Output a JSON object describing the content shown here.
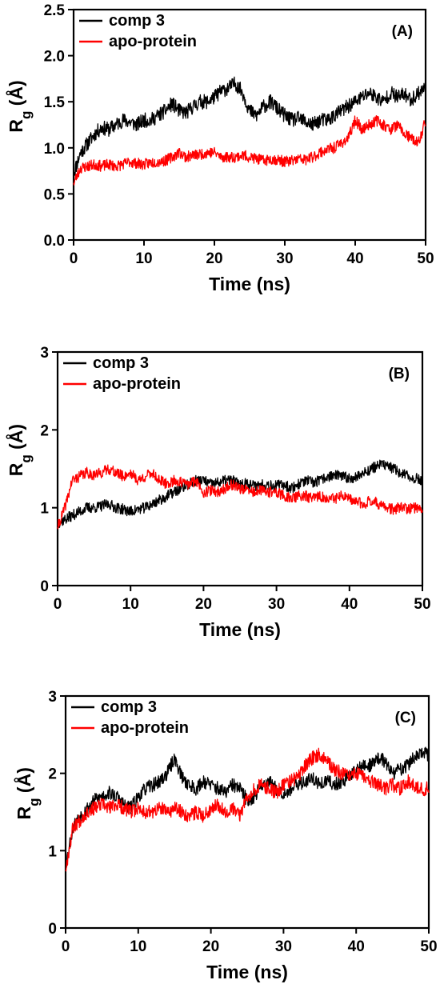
{
  "colors": {
    "comp3": "#000000",
    "apo": "#ff0000"
  },
  "chart_data": [
    {
      "type": "line",
      "panel_label": "(A)",
      "xlabel": "Time (ns)",
      "ylabel_main": "R",
      "ylabel_sub": "g",
      "ylabel_unit": "(Å)",
      "xlim": [
        0,
        50
      ],
      "ylim": [
        0,
        2.5
      ],
      "xticks": [
        0,
        10,
        20,
        30,
        40,
        50
      ],
      "xtick_labels": [
        "0",
        "10",
        "20",
        "30",
        "40",
        "50"
      ],
      "yticks": [
        0,
        0.5,
        1.0,
        1.5,
        2.0,
        2.5
      ],
      "ytick_labels": [
        "0.0",
        "0.5",
        "1.0",
        "1.5",
        "2.0",
        "2.5"
      ],
      "legend_position": "top-left",
      "series": [
        {
          "name": "comp 3",
          "color": "#000000",
          "x": [
            0,
            1,
            2,
            3,
            4,
            5,
            6,
            7,
            8,
            9,
            10,
            11,
            12,
            13,
            14,
            15,
            16,
            17,
            18,
            19,
            20,
            21,
            22,
            23,
            24,
            25,
            26,
            27,
            28,
            29,
            30,
            31,
            32,
            33,
            34,
            35,
            36,
            37,
            38,
            39,
            40,
            41,
            42,
            43,
            44,
            45,
            46,
            47,
            48,
            49,
            50
          ],
          "y": [
            0.72,
            0.95,
            1.05,
            1.15,
            1.22,
            1.2,
            1.25,
            1.3,
            1.28,
            1.25,
            1.3,
            1.3,
            1.35,
            1.4,
            1.48,
            1.4,
            1.38,
            1.45,
            1.5,
            1.5,
            1.55,
            1.62,
            1.65,
            1.7,
            1.6,
            1.4,
            1.35,
            1.45,
            1.5,
            1.42,
            1.35,
            1.3,
            1.32,
            1.28,
            1.25,
            1.3,
            1.3,
            1.35,
            1.4,
            1.45,
            1.5,
            1.55,
            1.6,
            1.55,
            1.5,
            1.6,
            1.55,
            1.58,
            1.52,
            1.6,
            1.65
          ],
          "noise": 0.08,
          "seed": 11
        },
        {
          "name": "apo-protein",
          "color": "#ff0000",
          "x": [
            0,
            1,
            2,
            3,
            4,
            5,
            6,
            7,
            8,
            9,
            10,
            11,
            12,
            13,
            14,
            15,
            16,
            17,
            18,
            19,
            20,
            21,
            22,
            23,
            24,
            25,
            26,
            27,
            28,
            29,
            30,
            31,
            32,
            33,
            34,
            35,
            36,
            37,
            38,
            39,
            40,
            41,
            42,
            43,
            44,
            45,
            46,
            47,
            48,
            49,
            50
          ],
          "y": [
            0.62,
            0.78,
            0.8,
            0.82,
            0.8,
            0.82,
            0.8,
            0.82,
            0.85,
            0.83,
            0.82,
            0.84,
            0.85,
            0.86,
            0.9,
            0.95,
            0.9,
            0.92,
            0.93,
            0.95,
            0.95,
            0.9,
            0.9,
            0.9,
            0.92,
            0.9,
            0.88,
            0.86,
            0.88,
            0.87,
            0.85,
            0.86,
            0.88,
            0.87,
            0.9,
            0.95,
            0.98,
            1.0,
            1.05,
            1.1,
            1.3,
            1.2,
            1.25,
            1.3,
            1.25,
            1.2,
            1.25,
            1.15,
            1.1,
            1.05,
            1.3
          ],
          "noise": 0.06,
          "seed": 23
        }
      ]
    },
    {
      "type": "line",
      "panel_label": "(B)",
      "xlabel": "Time (ns)",
      "ylabel_main": "R",
      "ylabel_sub": "g",
      "ylabel_unit": "(Å)",
      "xlim": [
        0,
        50
      ],
      "ylim": [
        0,
        3
      ],
      "xticks": [
        0,
        10,
        20,
        30,
        40,
        50
      ],
      "xtick_labels": [
        "0",
        "10",
        "20",
        "30",
        "40",
        "50"
      ],
      "yticks": [
        0,
        1,
        2,
        3
      ],
      "ytick_labels": [
        "0",
        "1",
        "2",
        "3"
      ],
      "legend_position": "top-left",
      "series": [
        {
          "name": "comp 3",
          "color": "#000000",
          "x": [
            0,
            1,
            2,
            3,
            4,
            5,
            6,
            7,
            8,
            9,
            10,
            11,
            12,
            13,
            14,
            15,
            16,
            17,
            18,
            19,
            20,
            21,
            22,
            23,
            24,
            25,
            26,
            27,
            28,
            29,
            30,
            31,
            32,
            33,
            34,
            35,
            36,
            37,
            38,
            39,
            40,
            41,
            42,
            43,
            44,
            45,
            46,
            47,
            48,
            49,
            50
          ],
          "y": [
            0.8,
            0.85,
            0.9,
            0.95,
            1.0,
            1.0,
            1.02,
            1.05,
            1.0,
            0.98,
            0.95,
            0.98,
            1.0,
            1.05,
            1.1,
            1.15,
            1.2,
            1.25,
            1.3,
            1.35,
            1.35,
            1.3,
            1.32,
            1.35,
            1.35,
            1.3,
            1.32,
            1.28,
            1.3,
            1.3,
            1.28,
            1.3,
            1.25,
            1.3,
            1.35,
            1.32,
            1.35,
            1.4,
            1.42,
            1.4,
            1.38,
            1.4,
            1.45,
            1.5,
            1.55,
            1.55,
            1.5,
            1.45,
            1.4,
            1.38,
            1.35
          ],
          "noise": 0.07,
          "seed": 37
        },
        {
          "name": "apo-protein",
          "color": "#ff0000",
          "x": [
            0,
            1,
            2,
            3,
            4,
            5,
            6,
            7,
            8,
            9,
            10,
            11,
            12,
            13,
            14,
            15,
            16,
            17,
            18,
            19,
            20,
            21,
            22,
            23,
            24,
            25,
            26,
            27,
            28,
            29,
            30,
            31,
            32,
            33,
            34,
            35,
            36,
            37,
            38,
            39,
            40,
            41,
            42,
            43,
            44,
            45,
            46,
            47,
            48,
            49,
            50
          ],
          "y": [
            0.75,
            1.0,
            1.35,
            1.4,
            1.45,
            1.42,
            1.45,
            1.5,
            1.45,
            1.4,
            1.45,
            1.35,
            1.4,
            1.45,
            1.35,
            1.3,
            1.35,
            1.32,
            1.3,
            1.35,
            1.2,
            1.22,
            1.2,
            1.25,
            1.3,
            1.25,
            1.22,
            1.2,
            1.22,
            1.2,
            1.2,
            1.15,
            1.12,
            1.15,
            1.15,
            1.12,
            1.15,
            1.1,
            1.12,
            1.15,
            1.1,
            1.08,
            1.05,
            1.1,
            1.05,
            1.0,
            0.98,
            1.0,
            0.98,
            1.0,
            1.0
          ],
          "noise": 0.07,
          "seed": 41
        }
      ]
    },
    {
      "type": "line",
      "panel_label": "(C)",
      "xlabel": "Time (ns)",
      "ylabel_main": "R",
      "ylabel_sub": "g",
      "ylabel_unit": "(Å)",
      "xlim": [
        0,
        50
      ],
      "ylim": [
        0,
        3
      ],
      "xticks": [
        0,
        10,
        20,
        30,
        40,
        50
      ],
      "xtick_labels": [
        "0",
        "10",
        "20",
        "30",
        "40",
        "50"
      ],
      "yticks": [
        0,
        1,
        2,
        3
      ],
      "ytick_labels": [
        "0",
        "1",
        "2",
        "3"
      ],
      "legend_position": "top-left",
      "series": [
        {
          "name": "comp 3",
          "color": "#000000",
          "x": [
            0,
            1,
            2,
            3,
            4,
            5,
            6,
            7,
            8,
            9,
            10,
            11,
            12,
            13,
            14,
            15,
            16,
            17,
            18,
            19,
            20,
            21,
            22,
            23,
            24,
            25,
            26,
            27,
            28,
            29,
            30,
            31,
            32,
            33,
            34,
            35,
            36,
            37,
            38,
            39,
            40,
            41,
            42,
            43,
            44,
            45,
            46,
            47,
            48,
            49,
            50
          ],
          "y": [
            0.8,
            1.3,
            1.45,
            1.55,
            1.65,
            1.7,
            1.75,
            1.7,
            1.6,
            1.55,
            1.7,
            1.8,
            1.85,
            1.9,
            2.0,
            2.2,
            1.95,
            1.85,
            1.8,
            1.9,
            1.85,
            1.8,
            1.75,
            1.85,
            1.8,
            1.65,
            1.7,
            1.85,
            1.9,
            1.8,
            1.75,
            1.8,
            1.85,
            1.9,
            1.95,
            1.85,
            1.9,
            1.85,
            1.9,
            1.95,
            2.05,
            2.1,
            2.1,
            2.2,
            2.15,
            2.0,
            2.05,
            2.1,
            2.2,
            2.25,
            2.25
          ],
          "noise": 0.09,
          "seed": 53
        },
        {
          "name": "apo-protein",
          "color": "#ff0000",
          "x": [
            0,
            1,
            2,
            3,
            4,
            5,
            6,
            7,
            8,
            9,
            10,
            11,
            12,
            13,
            14,
            15,
            16,
            17,
            18,
            19,
            20,
            21,
            22,
            23,
            24,
            25,
            26,
            27,
            28,
            29,
            30,
            31,
            32,
            33,
            34,
            35,
            36,
            37,
            38,
            39,
            40,
            41,
            42,
            43,
            44,
            45,
            46,
            47,
            48,
            49,
            50
          ],
          "y": [
            0.75,
            1.3,
            1.4,
            1.5,
            1.55,
            1.6,
            1.55,
            1.6,
            1.55,
            1.5,
            1.55,
            1.5,
            1.5,
            1.55,
            1.5,
            1.55,
            1.5,
            1.45,
            1.5,
            1.45,
            1.55,
            1.6,
            1.5,
            1.55,
            1.45,
            1.7,
            1.8,
            1.85,
            1.8,
            1.75,
            1.85,
            1.9,
            1.95,
            2.1,
            2.2,
            2.25,
            2.15,
            2.05,
            2.0,
            1.95,
            2.0,
            1.95,
            1.9,
            1.85,
            1.8,
            1.85,
            1.8,
            1.9,
            1.85,
            1.8,
            1.8
          ],
          "noise": 0.09,
          "seed": 67
        }
      ]
    }
  ]
}
